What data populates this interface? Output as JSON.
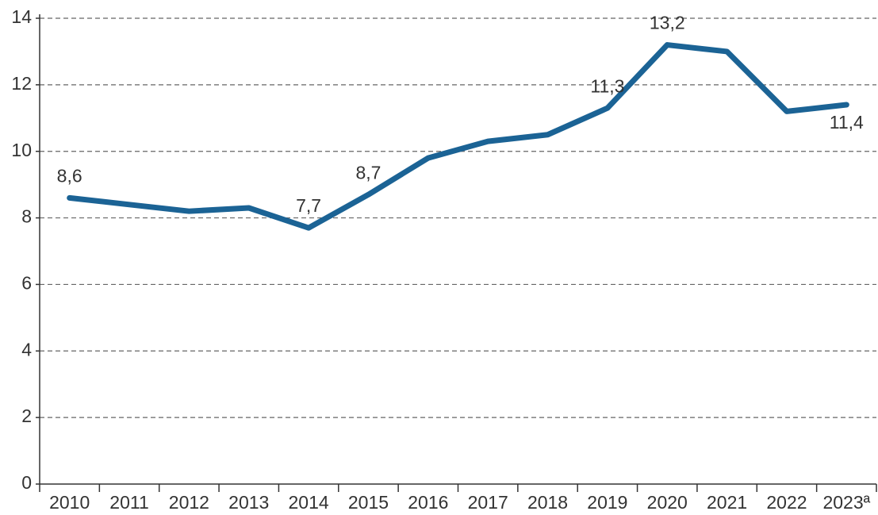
{
  "chart_data": {
    "type": "line",
    "categories": [
      "2010",
      "2011",
      "2012",
      "2013",
      "2014",
      "2015",
      "2016",
      "2017",
      "2018",
      "2019",
      "2020",
      "2021",
      "2022",
      "2023ª"
    ],
    "values": [
      8.6,
      8.4,
      8.2,
      8.3,
      7.7,
      8.7,
      9.8,
      10.3,
      10.5,
      11.3,
      13.2,
      13.0,
      11.2,
      11.4
    ],
    "value_labels": [
      "8,6",
      null,
      null,
      null,
      "7,7",
      "8,7",
      null,
      null,
      null,
      "11,3",
      "13,2",
      null,
      null,
      "11,4"
    ],
    "color": "#1b6395",
    "ylim": [
      0,
      14
    ],
    "yticks": [
      0,
      2,
      4,
      6,
      8,
      10,
      12,
      14
    ],
    "grid": true
  }
}
